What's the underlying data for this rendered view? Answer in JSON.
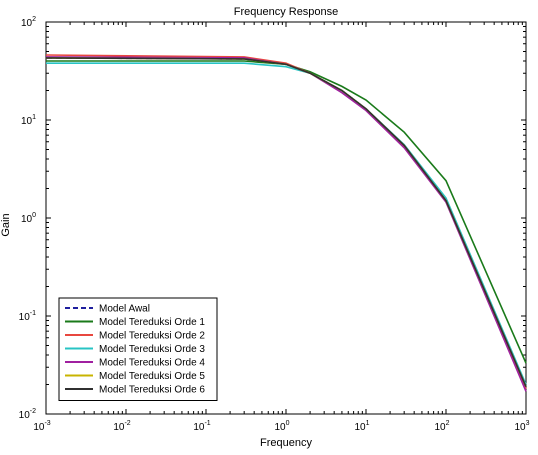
{
  "chart_data": {
    "type": "line",
    "title": "Frequency Response",
    "xlabel": "Frequency",
    "ylabel": "Gain",
    "xscale": "log",
    "yscale": "log",
    "xlim": [
      0.001,
      1000
    ],
    "ylim": [
      0.01,
      100
    ],
    "grid": false,
    "legend_position": "bottom-left",
    "x_ticks": [
      {
        "value": 0.001,
        "base": "10",
        "exp": "-3"
      },
      {
        "value": 0.01,
        "base": "10",
        "exp": "-2"
      },
      {
        "value": 0.1,
        "base": "10",
        "exp": "-1"
      },
      {
        "value": 1,
        "base": "10",
        "exp": "0"
      },
      {
        "value": 10,
        "base": "10",
        "exp": "1"
      },
      {
        "value": 100,
        "base": "10",
        "exp": "2"
      },
      {
        "value": 1000,
        "base": "10",
        "exp": "3"
      }
    ],
    "y_ticks": [
      {
        "value": 0.01,
        "base": "10",
        "exp": "-2"
      },
      {
        "value": 0.1,
        "base": "10",
        "exp": "-1"
      },
      {
        "value": 1,
        "base": "10",
        "exp": "0"
      },
      {
        "value": 10,
        "base": "10",
        "exp": "1"
      },
      {
        "value": 100,
        "base": "10",
        "exp": "2"
      }
    ],
    "series": [
      {
        "name": "Model Awal",
        "color": "#1f1f9e",
        "dash": "dashed",
        "x": [
          0.001,
          0.3,
          1,
          2,
          5,
          10,
          30,
          100,
          1000
        ],
        "y": [
          43,
          42,
          37,
          30,
          20,
          13,
          5.5,
          1.5,
          0.019
        ]
      },
      {
        "name": "Model Tereduksi Orde 1",
        "color": "#1a7a1a",
        "dash": "solid",
        "x": [
          0.001,
          0.3,
          1,
          2,
          5,
          10,
          30,
          100,
          1000
        ],
        "y": [
          40,
          40,
          37,
          31,
          22,
          16,
          7.5,
          2.4,
          0.033
        ]
      },
      {
        "name": "Model Tereduksi Orde 2",
        "color": "#e8473f",
        "dash": "solid",
        "x": [
          0.001,
          0.3,
          1,
          2,
          5,
          10,
          30,
          100,
          1000
        ],
        "y": [
          46,
          44,
          38,
          30,
          20,
          13,
          5.4,
          1.5,
          0.018
        ]
      },
      {
        "name": "Model Tereduksi Orde 3",
        "color": "#28c4c4",
        "dash": "solid",
        "x": [
          0.001,
          0.3,
          1,
          2,
          5,
          10,
          30,
          100,
          1000
        ],
        "y": [
          38,
          38,
          35,
          30,
          20,
          13,
          5.6,
          1.6,
          0.02
        ]
      },
      {
        "name": "Model Tereduksi Orde 4",
        "color": "#a020a0",
        "dash": "solid",
        "x": [
          0.001,
          0.3,
          1,
          2,
          5,
          10,
          30,
          100,
          1000
        ],
        "y": [
          44,
          43,
          37,
          30,
          19,
          12.5,
          5.2,
          1.45,
          0.017
        ]
      },
      {
        "name": "Model Tereduksi Orde 5",
        "color": "#c8b400",
        "dash": "solid",
        "x": [
          0.001,
          0.3,
          1,
          2,
          5,
          10,
          30,
          100,
          1000
        ],
        "y": [
          43,
          42,
          37,
          30,
          20,
          13,
          5.5,
          1.5,
          0.019
        ]
      },
      {
        "name": "Model Tereduksi Orde 6",
        "color": "#303030",
        "dash": "solid",
        "x": [
          0.001,
          0.3,
          1,
          2,
          5,
          10,
          30,
          100,
          1000
        ],
        "y": [
          43,
          42,
          37,
          30,
          20,
          13,
          5.5,
          1.5,
          0.019
        ]
      }
    ]
  }
}
